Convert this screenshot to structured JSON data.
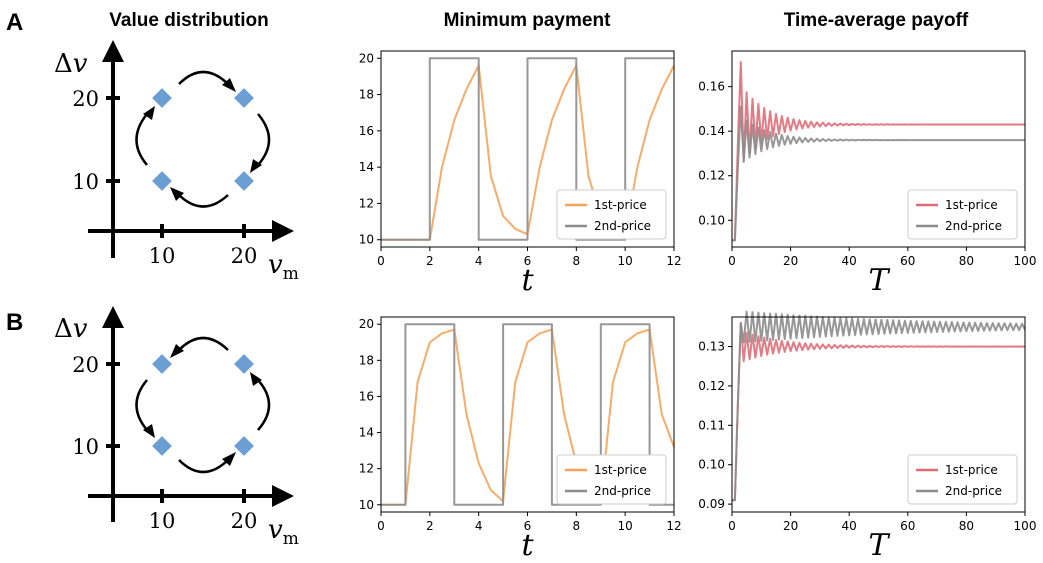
{
  "headers": {
    "col1": "Value distribution",
    "col2": "Minimum payment",
    "col3": "Time-average payoff"
  },
  "colors": {
    "first_price": "#f5a35a",
    "second_price": "#8c8c8c",
    "first_price_payoff": "#e06b77",
    "second_price_payoff": "#8c8c8c",
    "diamond": "#6b9fd4"
  },
  "diagram": {
    "y_symbol": "Δ",
    "y_var": "v",
    "x_var": "v",
    "x_sub": "m",
    "tick_10": "10",
    "tick_20": "20"
  },
  "rows": [
    {
      "label": "A",
      "diagram": {
        "direction": "clockwise"
      },
      "min_payment": {
        "xlabel": "t",
        "xticks": [
          "0",
          "2",
          "4",
          "6",
          "8",
          "10",
          "12"
        ],
        "yticks": [
          "10",
          "12",
          "14",
          "16",
          "18",
          "20"
        ],
        "legend": [
          "1st-price",
          "2nd-price"
        ]
      },
      "payoff": {
        "xlabel": "T",
        "xticks": [
          "0",
          "20",
          "40",
          "60",
          "80",
          "100"
        ],
        "yticks": [
          "0.10",
          "0.12",
          "0.14",
          "0.16"
        ],
        "legend": [
          "1st-price",
          "2nd-price"
        ]
      }
    },
    {
      "label": "B",
      "diagram": {
        "direction": "counterclockwise"
      },
      "min_payment": {
        "xlabel": "t",
        "xticks": [
          "0",
          "2",
          "4",
          "6",
          "8",
          "10",
          "12"
        ],
        "yticks": [
          "10",
          "12",
          "14",
          "16",
          "18",
          "20"
        ],
        "legend": [
          "1st-price",
          "2nd-price"
        ]
      },
      "payoff": {
        "xlabel": "T",
        "xticks": [
          "0",
          "20",
          "40",
          "60",
          "80",
          "100"
        ],
        "yticks": [
          "0.09",
          "0.10",
          "0.11",
          "0.12",
          "0.13"
        ],
        "legend": [
          "1st-price",
          "2nd-price"
        ]
      }
    }
  ],
  "chart_data": [
    {
      "panel": "A-minimum-payment",
      "type": "line",
      "xlabel": "t",
      "ylabel": "",
      "xlim": [
        0,
        12
      ],
      "ylim": [
        9.6,
        20.4
      ],
      "legend_position": "lower-right",
      "series": [
        {
          "name": "1st-price",
          "color": "#f5a35a",
          "x": [
            0,
            1,
            2,
            2.5,
            3,
            3.5,
            4,
            4.5,
            5,
            5.5,
            6,
            6.5,
            7,
            7.5,
            8,
            8.5,
            9,
            9.5,
            10,
            10.5,
            11,
            11.5,
            12
          ],
          "y": [
            10,
            10,
            10,
            14.0,
            16.6,
            18.3,
            19.6,
            13.5,
            11.3,
            10.6,
            10.3,
            14.0,
            16.6,
            18.3,
            19.6,
            13.5,
            11.3,
            10.6,
            10.3,
            14.0,
            16.6,
            18.3,
            19.6
          ]
        },
        {
          "name": "2nd-price",
          "color": "#8c8c8c",
          "x": [
            0,
            2,
            2,
            4,
            4,
            6,
            6,
            8,
            8,
            10,
            10,
            12
          ],
          "y": [
            10,
            10,
            20,
            20,
            10,
            10,
            20,
            20,
            10,
            10,
            20,
            20
          ]
        }
      ]
    },
    {
      "panel": "A-time-average-payoff",
      "type": "line",
      "xlabel": "T",
      "ylabel": "",
      "xlim": [
        0,
        100
      ],
      "ylim": [
        0.088,
        0.176
      ],
      "legend_position": "lower-right",
      "series": [
        {
          "name": "1st-price",
          "color": "#e06b77",
          "x_range": [
            0,
            100
          ],
          "period": 2,
          "start": 0.091,
          "first_peak_x": 3,
          "first_peak_y": 0.171,
          "asymptote": 0.143,
          "amp0": 0.018,
          "decay": 9
        },
        {
          "name": "2nd-price",
          "color": "#8c8c8c",
          "x_range": [
            0,
            100
          ],
          "period": 2,
          "start": 0.091,
          "first_peak_x": 3,
          "first_peak_y": 0.151,
          "asymptote": 0.136,
          "amp0": 0.011,
          "decay": 9
        }
      ]
    },
    {
      "panel": "B-minimum-payment",
      "type": "line",
      "xlabel": "t",
      "ylabel": "",
      "xlim": [
        0,
        12
      ],
      "ylim": [
        9.6,
        20.4
      ],
      "legend_position": "lower-right",
      "series": [
        {
          "name": "1st-price",
          "color": "#f5a35a",
          "x": [
            0,
            1,
            1.5,
            2,
            2.5,
            3,
            3.5,
            4,
            4.5,
            5,
            5.5,
            6,
            6.5,
            7,
            7.5,
            8,
            8.5,
            9,
            9.5,
            10,
            10.5,
            11,
            11.5,
            12
          ],
          "y": [
            10,
            10,
            16.8,
            19.0,
            19.5,
            19.7,
            15.0,
            12.3,
            10.8,
            10.2,
            16.8,
            19.0,
            19.5,
            19.7,
            15.0,
            12.3,
            10.8,
            10.2,
            16.8,
            19.0,
            19.5,
            19.7,
            15.0,
            13.2
          ]
        },
        {
          "name": "2nd-price",
          "color": "#8c8c8c",
          "x": [
            0,
            1,
            1,
            3,
            3,
            5,
            5,
            7,
            7,
            9,
            9,
            11,
            11,
            12
          ],
          "y": [
            10,
            10,
            20,
            20,
            10,
            10,
            20,
            20,
            10,
            10,
            20,
            20,
            10,
            10
          ]
        }
      ]
    },
    {
      "panel": "B-time-average-payoff",
      "type": "line",
      "xlabel": "T",
      "ylabel": "",
      "xlim": [
        0,
        100
      ],
      "ylim": [
        0.088,
        0.1375
      ],
      "legend_position": "lower-right",
      "series": [
        {
          "name": "1st-price",
          "color": "#e06b77",
          "x_range": [
            0,
            100
          ],
          "period": 2,
          "start": 0.091,
          "first_peak_x": 3,
          "first_peak_y": 0.136,
          "asymptote": 0.13,
          "amp0": 0.004,
          "decay": 14
        },
        {
          "name": "2nd-price",
          "color": "#8c8c8c",
          "x_range": [
            0,
            100
          ],
          "period": 2,
          "start": 0.091,
          "first_peak_x": 3,
          "first_peak_y": 0.136,
          "asymptote": 0.135,
          "amp0": 0.004,
          "decay": 60
        }
      ]
    }
  ]
}
